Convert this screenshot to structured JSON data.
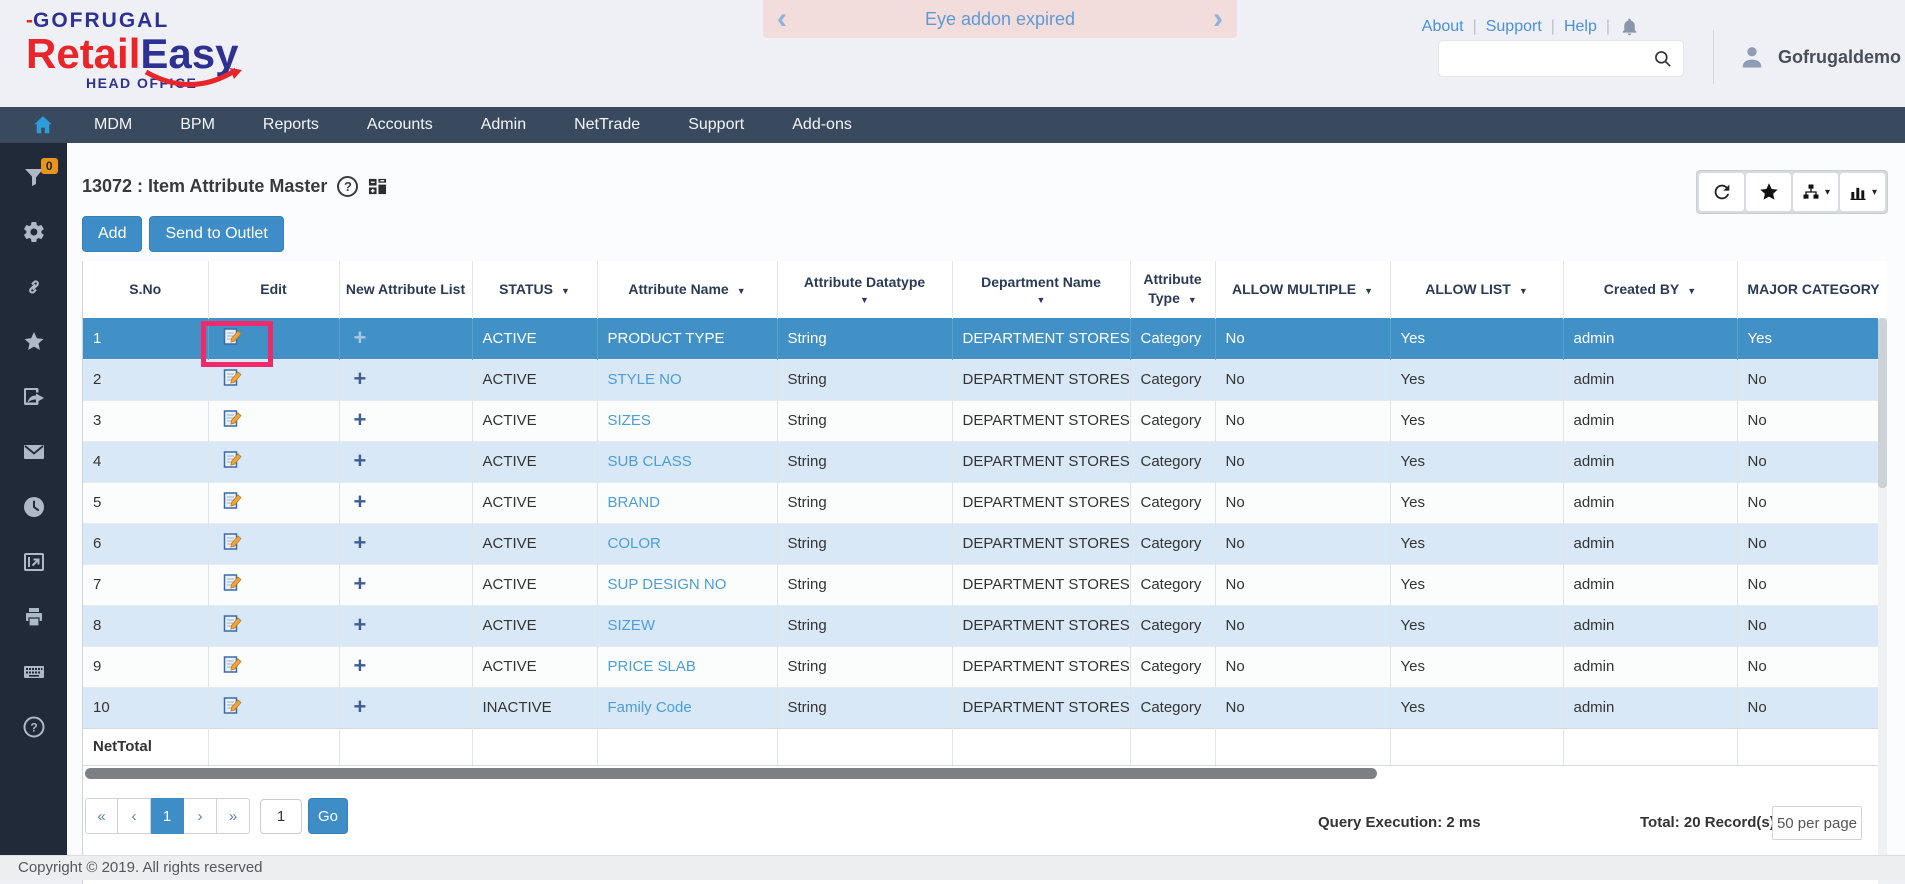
{
  "header": {
    "logo": {
      "brand": "GOFRUGAL",
      "product_part1": "Retail",
      "product_part2": "Easy",
      "tagline": "HEAD OFFICE"
    },
    "banner": {
      "text": "Eye addon expired",
      "prev": "‹",
      "next": "›"
    },
    "links": [
      "About",
      "Support",
      "Help"
    ],
    "search": {
      "placeholder": ""
    },
    "user": {
      "name": "Gofrugaldemo"
    }
  },
  "nav": {
    "items": [
      "MDM",
      "BPM",
      "Reports",
      "Accounts",
      "Admin",
      "NetTrade",
      "Support",
      "Add-ons"
    ]
  },
  "sidebar": {
    "filter_badge": "0"
  },
  "page": {
    "title": "13072 : Item Attribute Master",
    "add_button": "Add",
    "send_button": "Send to Outlet"
  },
  "table": {
    "columns": [
      {
        "label": "S.No",
        "sortable": false
      },
      {
        "label": "Edit",
        "sortable": false
      },
      {
        "label": "New Attribute List",
        "sortable": false
      },
      {
        "label": "STATUS",
        "sortable": true
      },
      {
        "label": "Attribute Name",
        "sortable": true
      },
      {
        "label": "Attribute Datatype",
        "sortable": true
      },
      {
        "label": "Department Name",
        "sortable": true
      },
      {
        "label": "Attribute Type",
        "sortable": true
      },
      {
        "label": "ALLOW MULTIPLE",
        "sortable": true
      },
      {
        "label": "ALLOW LIST",
        "sortable": true
      },
      {
        "label": "Created BY",
        "sortable": true
      },
      {
        "label": "MAJOR CATEGORY",
        "sortable": true
      }
    ],
    "rows": [
      {
        "sno": "1",
        "status": "ACTIVE",
        "name": "PRODUCT TYPE",
        "datatype": "String",
        "department": "DEPARTMENT STORES",
        "type": "Category",
        "allow_multiple": "No",
        "allow_list": "Yes",
        "created_by": "admin",
        "major_category": "Yes",
        "selected": true,
        "edit_highlighted": true
      },
      {
        "sno": "2",
        "status": "ACTIVE",
        "name": "STYLE NO",
        "datatype": "String",
        "department": "DEPARTMENT STORES",
        "type": "Category",
        "allow_multiple": "No",
        "allow_list": "Yes",
        "created_by": "admin",
        "major_category": "No",
        "selected": false,
        "edit_highlighted": false
      },
      {
        "sno": "3",
        "status": "ACTIVE",
        "name": "SIZES",
        "datatype": "String",
        "department": "DEPARTMENT STORES",
        "type": "Category",
        "allow_multiple": "No",
        "allow_list": "Yes",
        "created_by": "admin",
        "major_category": "No",
        "selected": false,
        "edit_highlighted": false
      },
      {
        "sno": "4",
        "status": "ACTIVE",
        "name": "SUB CLASS",
        "datatype": "String",
        "department": "DEPARTMENT STORES",
        "type": "Category",
        "allow_multiple": "No",
        "allow_list": "Yes",
        "created_by": "admin",
        "major_category": "No",
        "selected": false,
        "edit_highlighted": false
      },
      {
        "sno": "5",
        "status": "ACTIVE",
        "name": "BRAND",
        "datatype": "String",
        "department": "DEPARTMENT STORES",
        "type": "Category",
        "allow_multiple": "No",
        "allow_list": "Yes",
        "created_by": "admin",
        "major_category": "No",
        "selected": false,
        "edit_highlighted": false
      },
      {
        "sno": "6",
        "status": "ACTIVE",
        "name": "COLOR",
        "datatype": "String",
        "department": "DEPARTMENT STORES",
        "type": "Category",
        "allow_multiple": "No",
        "allow_list": "Yes",
        "created_by": "admin",
        "major_category": "No",
        "selected": false,
        "edit_highlighted": false
      },
      {
        "sno": "7",
        "status": "ACTIVE",
        "name": "SUP DESIGN NO",
        "datatype": "String",
        "department": "DEPARTMENT STORES",
        "type": "Category",
        "allow_multiple": "No",
        "allow_list": "Yes",
        "created_by": "admin",
        "major_category": "No",
        "selected": false,
        "edit_highlighted": false
      },
      {
        "sno": "8",
        "status": "ACTIVE",
        "name": "SIZEW",
        "datatype": "String",
        "department": "DEPARTMENT STORES",
        "type": "Category",
        "allow_multiple": "No",
        "allow_list": "Yes",
        "created_by": "admin",
        "major_category": "No",
        "selected": false,
        "edit_highlighted": false
      },
      {
        "sno": "9",
        "status": "ACTIVE",
        "name": "PRICE SLAB",
        "datatype": "String",
        "department": "DEPARTMENT STORES",
        "type": "Category",
        "allow_multiple": "No",
        "allow_list": "Yes",
        "created_by": "admin",
        "major_category": "No",
        "selected": false,
        "edit_highlighted": false
      },
      {
        "sno": "10",
        "status": "INACTIVE",
        "name": "Family Code",
        "datatype": "String",
        "department": "DEPARTMENT STORES",
        "type": "Category",
        "allow_multiple": "No",
        "allow_list": "Yes",
        "created_by": "admin",
        "major_category": "No",
        "selected": false,
        "edit_highlighted": false
      }
    ],
    "net_total_label": "NetTotal"
  },
  "pagination": {
    "first": "«",
    "prev": "‹",
    "page": "1",
    "next": "›",
    "last": "»",
    "goto_value": "1",
    "go_label": "Go"
  },
  "status_bar": {
    "query_execution": "Query Execution: 2 ms",
    "total": "Total: 20 Record(s)",
    "per_page": "50 per page"
  },
  "footer": {
    "copyright": "Copyright © 2019. All rights reserved"
  },
  "colors": {
    "accent_blue": "#3f8dc6",
    "selected_row": "#4191c6",
    "banner_pink": "#f3dcdc",
    "badge_orange": "#e8951e",
    "annotation_pink": "#ee2a6a",
    "nav_bar": "#3a4a5e",
    "sidebar": "#202a38"
  }
}
